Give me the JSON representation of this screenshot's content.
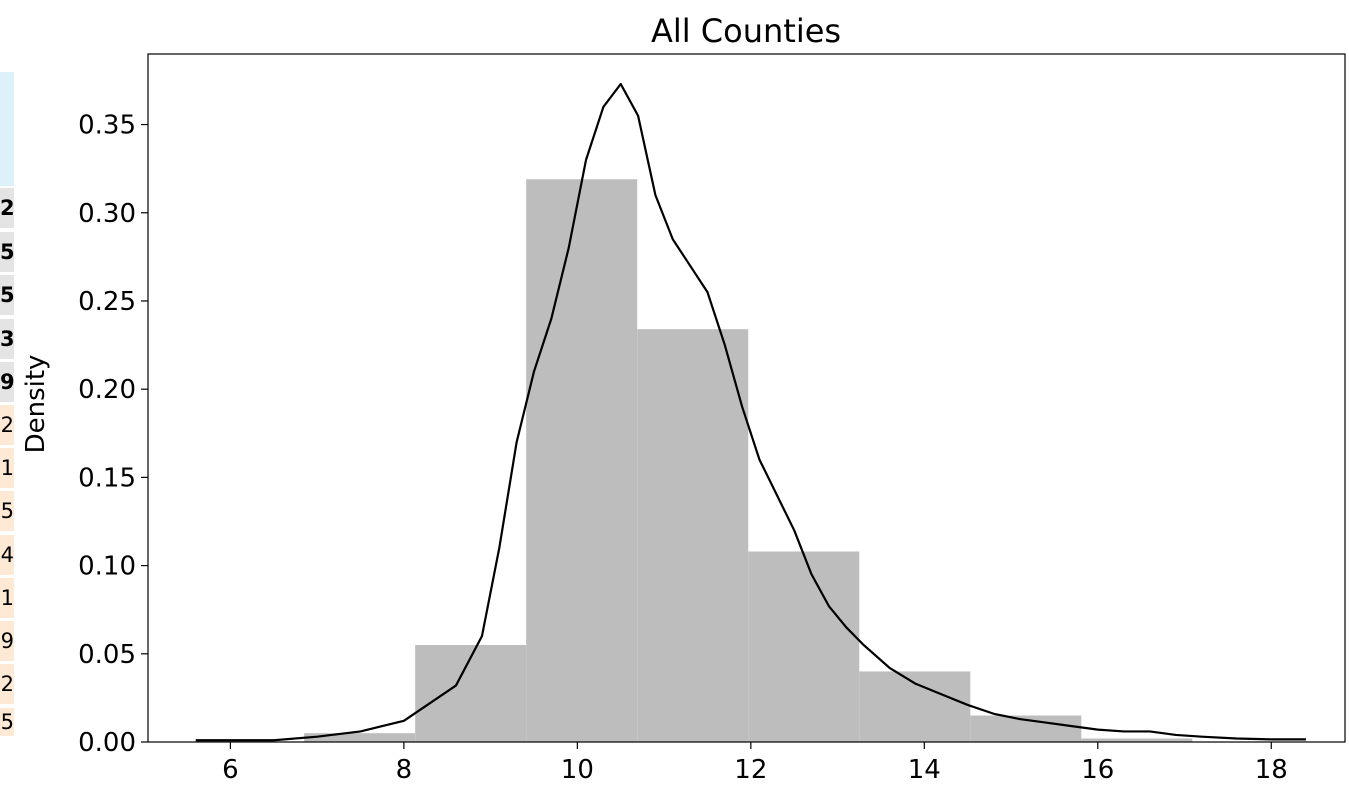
{
  "chart_data": {
    "type": "bar",
    "title": "All Counties",
    "xlabel": "",
    "ylabel": "Density",
    "xlim": [
      5.05,
      18.85
    ],
    "ylim": [
      0,
      0.39
    ],
    "x_ticks": [
      "6",
      "8",
      "10",
      "12",
      "14",
      "16",
      "18"
    ],
    "y_ticks": [
      "0.00",
      "0.05",
      "0.10",
      "0.15",
      "0.20",
      "0.25",
      "0.30",
      "0.35"
    ],
    "histogram": {
      "bin_edges": [
        6.85,
        8.13,
        9.41,
        10.69,
        11.97,
        13.25,
        14.53,
        15.81,
        17.09
      ],
      "densities": [
        0.005,
        0.055,
        0.319,
        0.234,
        0.108,
        0.04,
        0.015,
        0.002
      ],
      "color": "#bdbdbd"
    },
    "kde": {
      "color": "#000000",
      "points": [
        [
          5.6,
          0.001
        ],
        [
          6.0,
          0.001
        ],
        [
          6.5,
          0.001
        ],
        [
          7.0,
          0.003
        ],
        [
          7.5,
          0.006
        ],
        [
          8.0,
          0.012
        ],
        [
          8.3,
          0.022
        ],
        [
          8.6,
          0.032
        ],
        [
          8.9,
          0.06
        ],
        [
          9.1,
          0.11
        ],
        [
          9.3,
          0.17
        ],
        [
          9.5,
          0.21
        ],
        [
          9.7,
          0.24
        ],
        [
          9.9,
          0.28
        ],
        [
          10.1,
          0.33
        ],
        [
          10.3,
          0.36
        ],
        [
          10.5,
          0.373
        ],
        [
          10.7,
          0.355
        ],
        [
          10.9,
          0.31
        ],
        [
          11.1,
          0.285
        ],
        [
          11.3,
          0.27
        ],
        [
          11.5,
          0.255
        ],
        [
          11.7,
          0.225
        ],
        [
          11.9,
          0.19
        ],
        [
          12.1,
          0.16
        ],
        [
          12.3,
          0.14
        ],
        [
          12.5,
          0.12
        ],
        [
          12.7,
          0.095
        ],
        [
          12.9,
          0.077
        ],
        [
          13.1,
          0.065
        ],
        [
          13.3,
          0.055
        ],
        [
          13.6,
          0.042
        ],
        [
          13.9,
          0.033
        ],
        [
          14.2,
          0.027
        ],
        [
          14.5,
          0.021
        ],
        [
          14.8,
          0.016
        ],
        [
          15.1,
          0.013
        ],
        [
          15.4,
          0.011
        ],
        [
          15.7,
          0.009
        ],
        [
          16.0,
          0.007
        ],
        [
          16.3,
          0.006
        ],
        [
          16.6,
          0.006
        ],
        [
          16.9,
          0.004
        ],
        [
          17.2,
          0.003
        ],
        [
          17.6,
          0.002
        ],
        [
          18.0,
          0.0015
        ],
        [
          18.4,
          0.0015
        ]
      ]
    }
  },
  "left_strip": {
    "header_color": "#dcf1f9",
    "cells": [
      {
        "text": "2",
        "bg": "#e4e4e4",
        "bold": true
      },
      {
        "text": "5",
        "bg": "#e4e4e4",
        "bold": true
      },
      {
        "text": "5",
        "bg": "#e4e4e4",
        "bold": true
      },
      {
        "text": "3",
        "bg": "#e4e4e4",
        "bold": true
      },
      {
        "text": "9",
        "bg": "#e4e4e4",
        "bold": true
      },
      {
        "text": "2",
        "bg": "#fde9d4",
        "bold": false
      },
      {
        "text": "1",
        "bg": "#fde9d4",
        "bold": false
      },
      {
        "text": "5",
        "bg": "#fde9d4",
        "bold": false
      },
      {
        "text": "4",
        "bg": "#fde9d4",
        "bold": false
      },
      {
        "text": "1",
        "bg": "#fde9d4",
        "bold": false
      },
      {
        "text": "9",
        "bg": "#fde9d4",
        "bold": false
      },
      {
        "text": "2",
        "bg": "#fde9d4",
        "bold": false
      },
      {
        "text": "5",
        "bg": "#fde9d4",
        "bold": false
      }
    ]
  }
}
